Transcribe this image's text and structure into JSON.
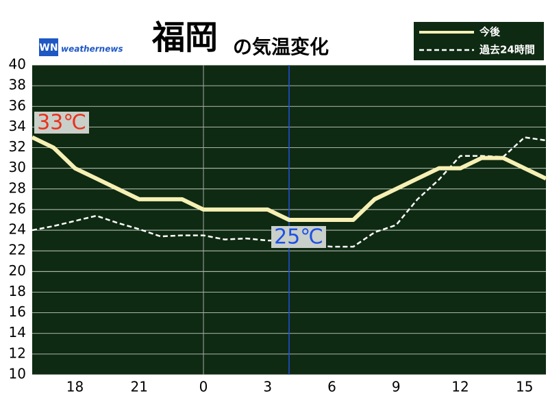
{
  "chart_data": {
    "type": "line",
    "title": "福岡",
    "subtitle": "の気温変化",
    "logo": "weathernews",
    "x": [
      16,
      17,
      18,
      19,
      20,
      21,
      22,
      23,
      24,
      25,
      26,
      27,
      28,
      29,
      30,
      31,
      32,
      33,
      34,
      35,
      36,
      37,
      38,
      39,
      40
    ],
    "series": [
      {
        "name": "今後",
        "color": "#f6f0b5",
        "dash": false,
        "values": [
          33,
          32,
          30,
          29,
          28,
          27,
          27,
          27,
          26,
          26,
          26,
          26,
          25,
          25,
          25,
          25,
          27,
          28,
          29,
          30,
          30,
          31,
          31,
          30,
          29
        ]
      },
      {
        "name": "過去24時間",
        "color": "#ffffff",
        "dash": true,
        "values": [
          24,
          24.4,
          24.9,
          25.4,
          24.7,
          24.1,
          23.4,
          23.5,
          23.5,
          23.1,
          23.2,
          23,
          23,
          22.6,
          22.4,
          22.4,
          23.8,
          24.5,
          27,
          28.9,
          31.2,
          31.2,
          31.1,
          33,
          32.7
        ]
      }
    ],
    "xlim": [
      16,
      40
    ],
    "xticks": [
      {
        "value": 18,
        "label": "18"
      },
      {
        "value": 21,
        "label": "21"
      },
      {
        "value": 24,
        "label": "0"
      },
      {
        "value": 27,
        "label": "3"
      },
      {
        "value": 30,
        "label": "6"
      },
      {
        "value": 33,
        "label": "9"
      },
      {
        "value": 36,
        "label": "12"
      },
      {
        "value": 39,
        "label": "15"
      }
    ],
    "ylim": [
      10,
      40
    ],
    "yticks": [
      10,
      12,
      14,
      16,
      18,
      20,
      22,
      24,
      26,
      28,
      30,
      32,
      34,
      36,
      38,
      40
    ],
    "grid": true,
    "day_line": 24,
    "now_line": 28,
    "annotations": [
      {
        "text": "33℃",
        "color": "#e8321e"
      },
      {
        "text": "25℃",
        "color": "#1e50e6"
      }
    ]
  }
}
